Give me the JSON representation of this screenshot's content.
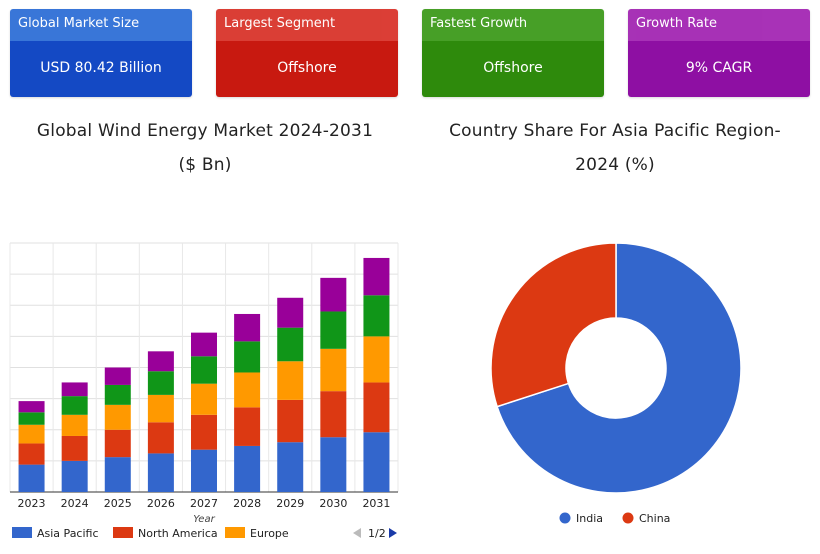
{
  "cards": [
    {
      "label": "Global Market Size",
      "value": "USD 80.42 Billion",
      "header_color": "#2f6fd6",
      "body_color": "#1449c4"
    },
    {
      "label": "Largest Segment",
      "value": "Offshore",
      "header_color": "#d9342b",
      "body_color": "#c81910"
    },
    {
      "label": "Fastest Growth",
      "value": "Offshore",
      "header_color": "#3e9a1c",
      "body_color": "#2e8a0c"
    },
    {
      "label": "Growth Rate",
      "value": "9% CAGR",
      "header_color": "#a327b3",
      "body_color": "#8e0fa3"
    }
  ],
  "left_title_line1": "Global Wind Energy Market 2024-2031",
  "left_title_line2": "($ Bn)",
  "right_title_line1": "Country Share For Asia Pacific Region-",
  "right_title_line2": "2024 (%)",
  "chart_data": [
    {
      "type": "bar",
      "stacked": true,
      "categories": [
        "2023",
        "2024",
        "2025",
        "2026",
        "2027",
        "2028",
        "2029",
        "2030",
        "2031"
      ],
      "xlabel": "Year",
      "series": [
        {
          "name": "Asia Pacific",
          "color": "#3366cc",
          "values": [
            22,
            25,
            28,
            31,
            34,
            37,
            40,
            44,
            48
          ]
        },
        {
          "name": "North America",
          "color": "#dc3912",
          "values": [
            17,
            20,
            22,
            25,
            28,
            31,
            34,
            37,
            40
          ]
        },
        {
          "name": "Europe",
          "color": "#ff9900",
          "values": [
            15,
            17,
            20,
            22,
            25,
            28,
            31,
            34,
            37
          ]
        },
        {
          "name": "",
          "color": "#109618",
          "values": [
            10,
            15,
            16,
            19,
            22,
            25,
            27,
            30,
            33
          ]
        },
        {
          "name": "",
          "color": "#990099",
          "values": [
            9,
            11,
            14,
            16,
            19,
            22,
            24,
            27,
            30
          ]
        }
      ],
      "ylim": [
        0,
        200
      ],
      "grid": true,
      "legend_position": "bottom",
      "legend_page": "1/2"
    },
    {
      "type": "pie",
      "donut": true,
      "slices": [
        {
          "name": "India",
          "value": 70,
          "color": "#3366cc"
        },
        {
          "name": "China",
          "value": 30,
          "color": "#dc3912"
        }
      ],
      "legend_position": "bottom"
    }
  ]
}
